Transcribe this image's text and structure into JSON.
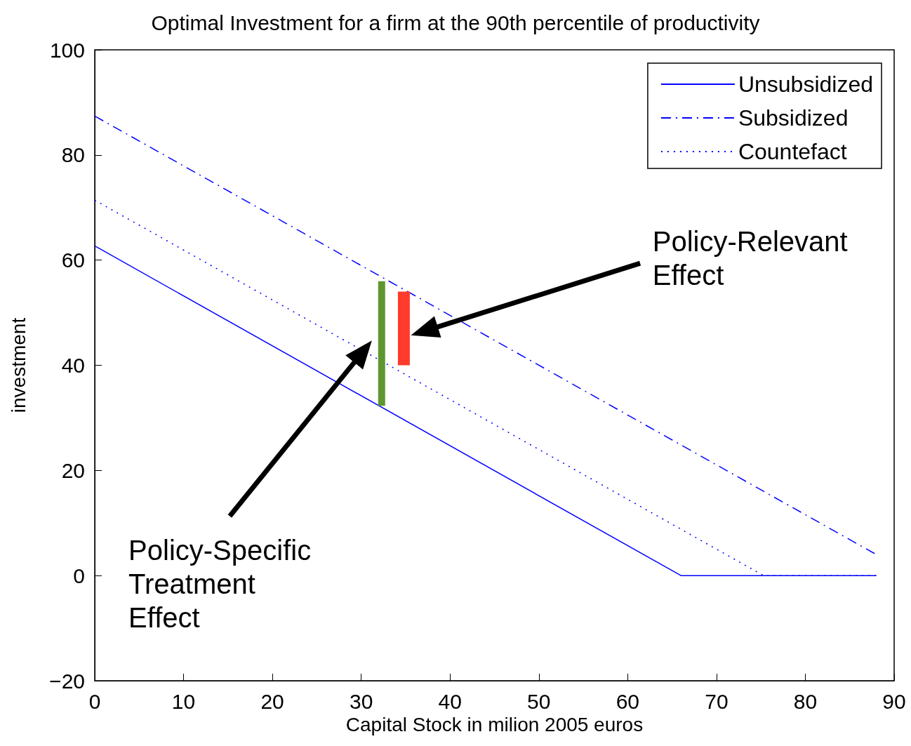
{
  "chart_data": {
    "type": "line",
    "title": "Optimal Investment for a firm at the 90th percentile of productivity",
    "xlabel": "Capital Stock in milion 2005 euros",
    "ylabel": "investment",
    "xlim": [
      0,
      90
    ],
    "xticks": [
      0,
      10,
      20,
      30,
      40,
      50,
      60,
      70,
      80,
      90
    ],
    "ylim": [
      -20,
      100
    ],
    "yticks": [
      -20,
      0,
      20,
      40,
      60,
      80,
      100
    ],
    "legend": "top right",
    "marker": "none",
    "series": [
      {
        "name": "Unsubsidized",
        "color": "#0000ff",
        "line_style": "solid",
        "x": [
          0,
          66,
          88
        ],
        "values": [
          62.7,
          0,
          0
        ]
      },
      {
        "name": "Subsidized",
        "color": "#0000ff",
        "line_style": "dashed",
        "x": [
          0,
          88
        ],
        "values": [
          87.4,
          4.0
        ]
      },
      {
        "name": "Countefact",
        "color": "#0000ff",
        "line_style": "dotted",
        "x": [
          0,
          75.3,
          88
        ],
        "values": [
          71.4,
          0,
          0
        ]
      },
      {
        "color": "#5f9632",
        "line_style": "solid",
        "x": [
          32.3,
          32.3
        ],
        "values": [
          32.3,
          56
        ]
      },
      {
        "color": "#ff3b2b",
        "line_style": "solid",
        "x": [
          34.8,
          34.8
        ],
        "values": [
          40,
          54
        ]
      }
    ],
    "annotations": [
      "Policy-Relevant\nEffect",
      "Policy-Specific\nTreatment\nEffect"
    ]
  }
}
